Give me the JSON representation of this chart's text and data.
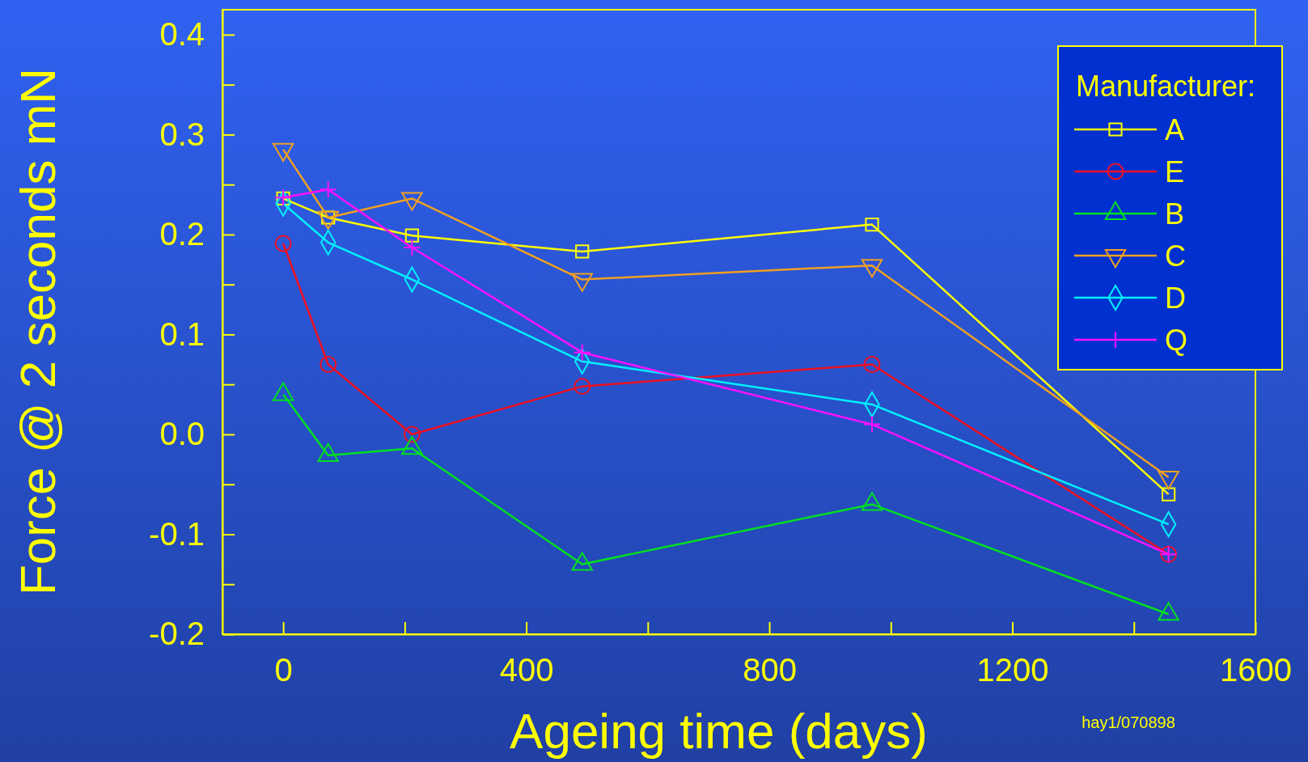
{
  "chart_data": {
    "type": "line",
    "xlabel": "Ageing time (days)",
    "ylabel": "Force @ 2 seconds mN",
    "legend_title": "Manufacturer:",
    "x": [
      0,
      74,
      212,
      492,
      969,
      1457
    ],
    "series": [
      {
        "name": "A",
        "color": "#ffff00",
        "marker": "square",
        "values": [
          0.236,
          0.217,
          0.199,
          0.183,
          0.21,
          -0.06
        ]
      },
      {
        "name": "E",
        "color": "#ee1122",
        "marker": "circle",
        "values": [
          0.191,
          0.07,
          0.0,
          0.048,
          0.07,
          -0.12
        ]
      },
      {
        "name": "B",
        "color": "#00e020",
        "marker": "triangle",
        "values": [
          0.04,
          -0.021,
          -0.014,
          -0.13,
          -0.07,
          -0.18
        ]
      },
      {
        "name": "C",
        "color": "#f0a020",
        "marker": "triangle-down",
        "values": [
          0.285,
          0.217,
          0.236,
          0.155,
          0.169,
          -0.043
        ]
      },
      {
        "name": "D",
        "color": "#00f0ff",
        "marker": "diamond",
        "values": [
          0.231,
          0.192,
          0.155,
          0.073,
          0.03,
          -0.09
        ]
      },
      {
        "name": "Q",
        "color": "#ff10ff",
        "marker": "cross",
        "values": [
          0.237,
          0.245,
          0.187,
          0.082,
          0.01,
          -0.12
        ]
      }
    ],
    "xlim": [
      -100,
      1600
    ],
    "ylim": [
      -0.2,
      0.425
    ],
    "xticks": [
      0,
      {
        "value": 200,
        "label": null
      },
      400,
      {
        "value": 600,
        "label": null
      },
      800,
      {
        "value": 1000,
        "label": null
      },
      1200,
      {
        "value": 1400,
        "label": null
      },
      1600
    ],
    "yticks": [
      {
        "value": -0.2,
        "label": "-0.2"
      },
      {
        "value": -0.15,
        "label": null
      },
      {
        "value": -0.1,
        "label": "-0.1"
      },
      {
        "value": -0.05,
        "label": null
      },
      {
        "value": 0,
        "label": "0.0"
      },
      {
        "value": 0.05,
        "label": null
      },
      {
        "value": 0.1,
        "label": "0.1"
      },
      {
        "value": 0.15,
        "label": null
      },
      {
        "value": 0.2,
        "label": "0.2"
      },
      {
        "value": 0.25,
        "label": null
      },
      {
        "value": 0.3,
        "label": "0.3"
      },
      {
        "value": 0.35,
        "label": null
      },
      {
        "value": 0.4,
        "label": "0.4"
      }
    ],
    "grid": false,
    "legend": "top right",
    "annotations": [
      "hay1/070898"
    ]
  }
}
